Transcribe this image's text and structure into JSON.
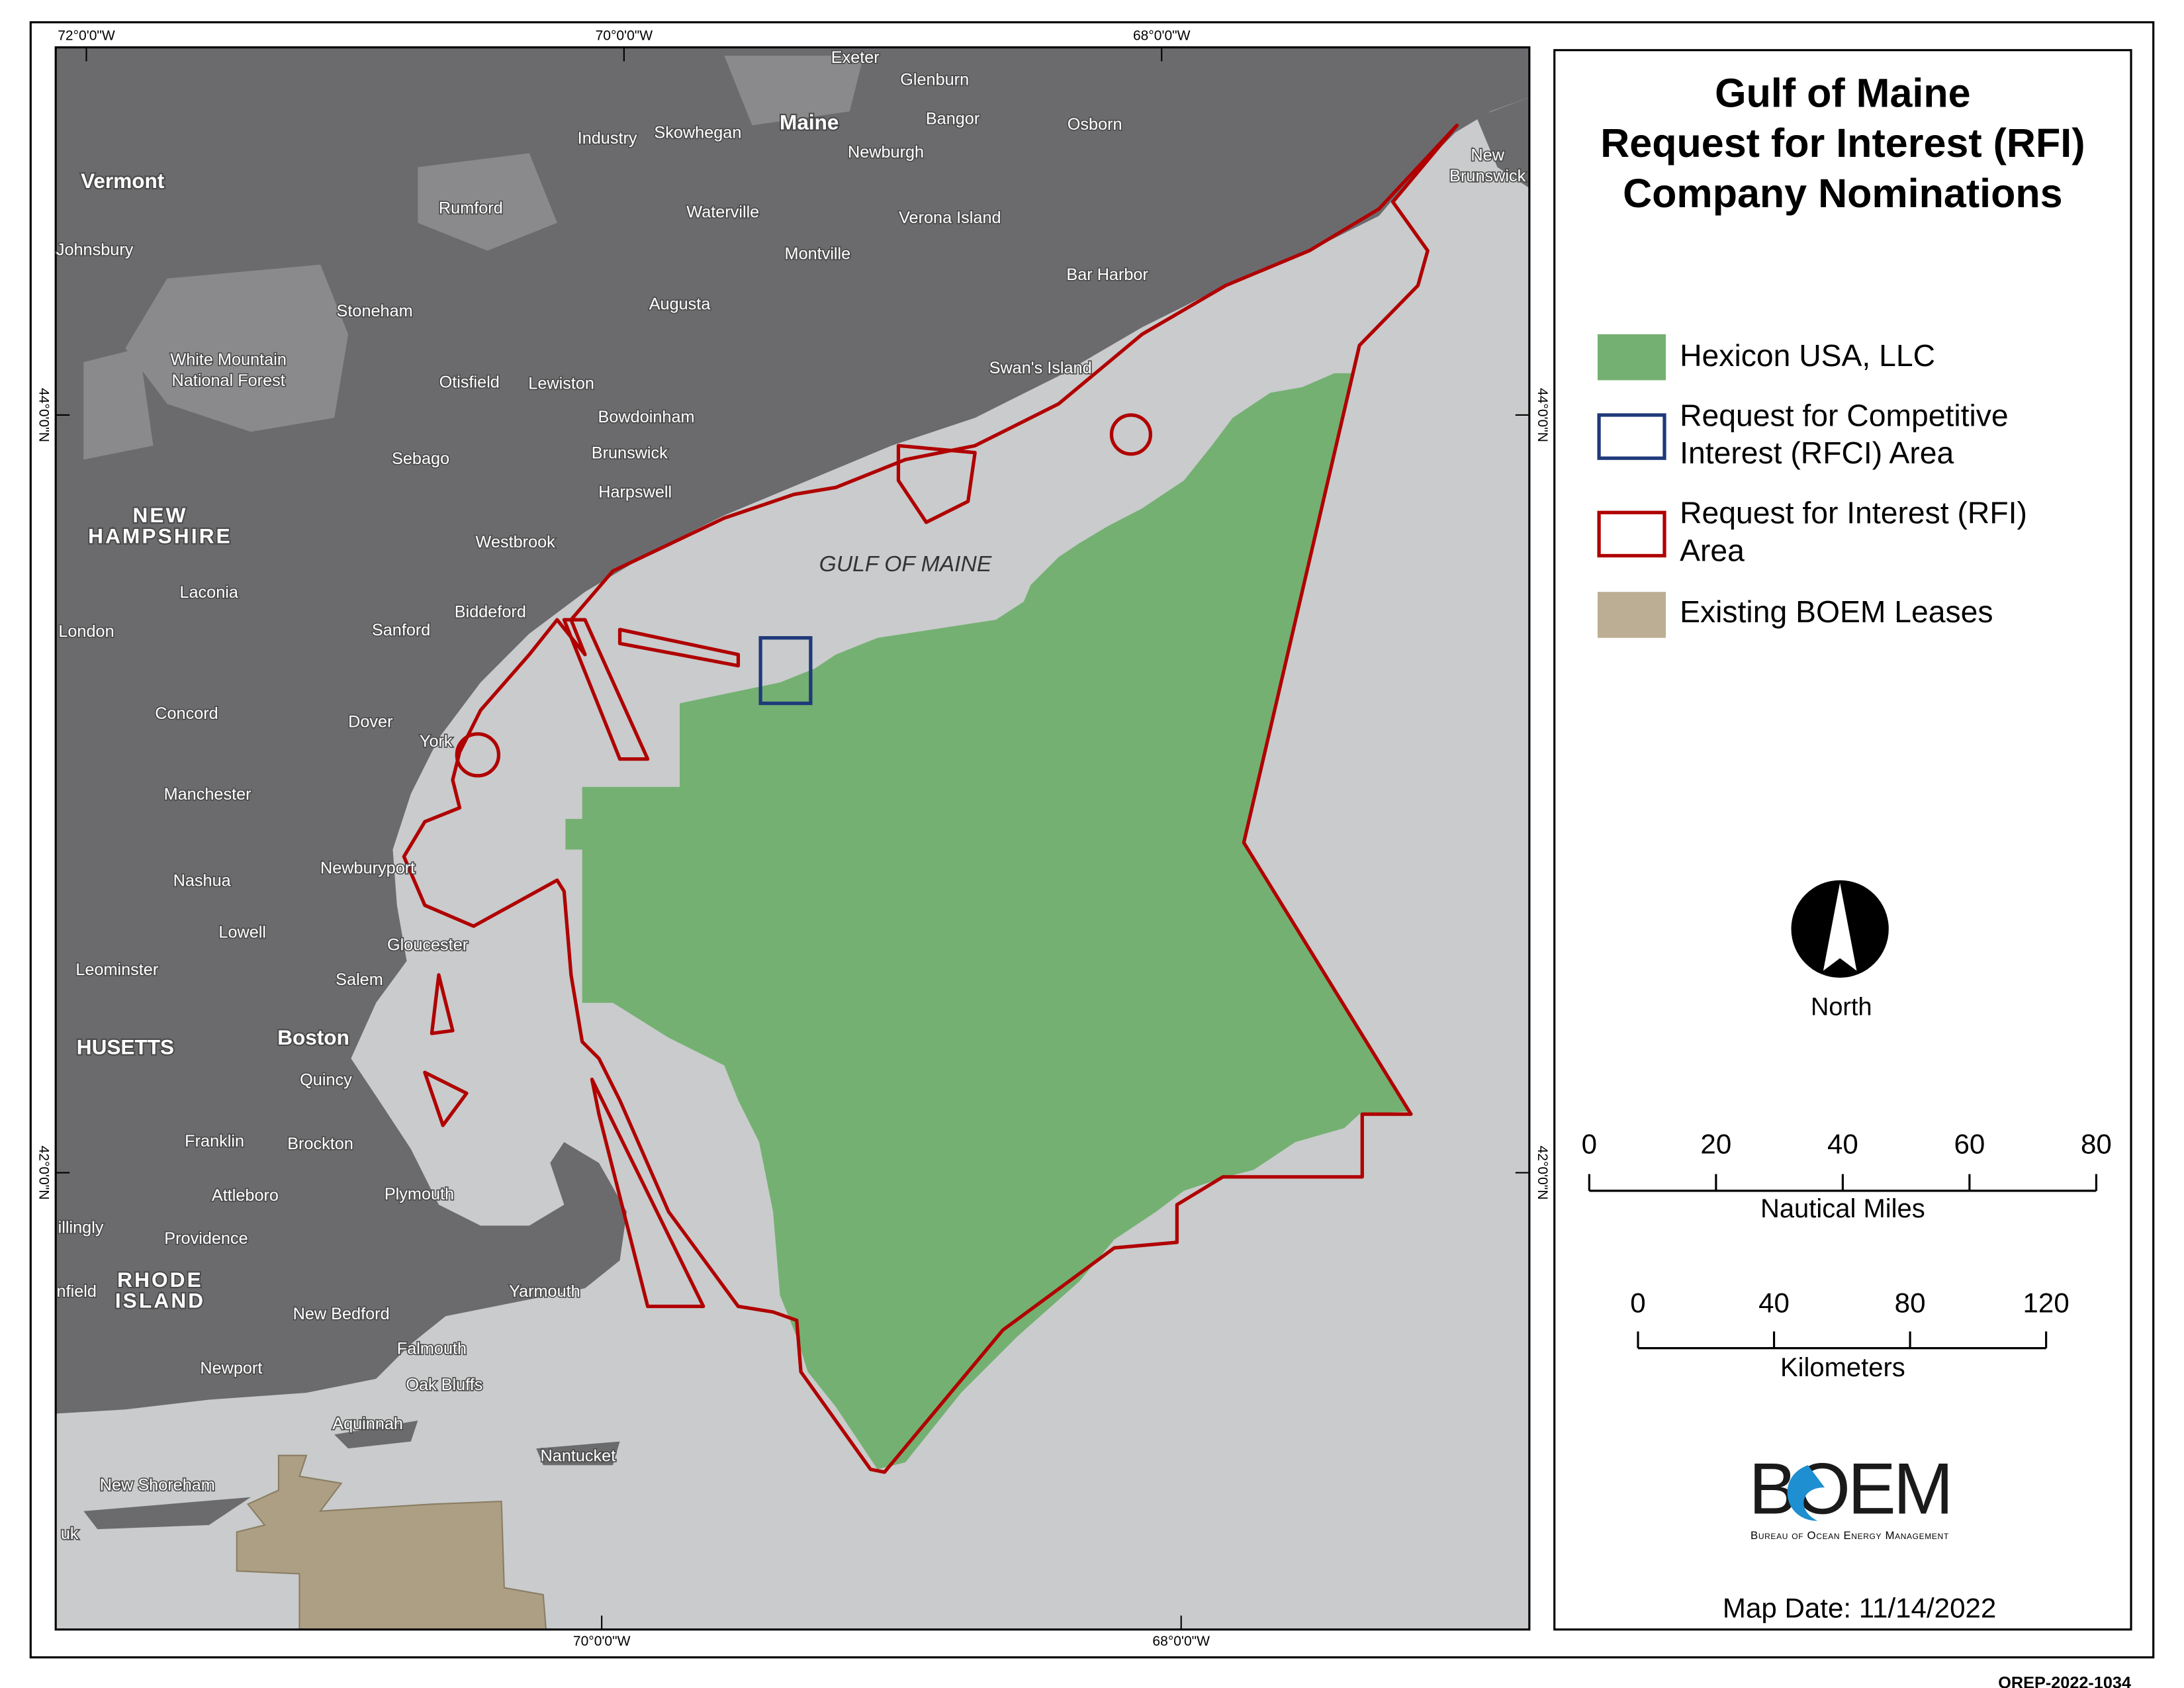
{
  "title": [
    "Gulf of Maine",
    "Request for Interest (RFI)",
    "Company Nominations"
  ],
  "legend": [
    {
      "lines": [
        "Hexicon USA, LLC"
      ]
    },
    {
      "lines": [
        "Request for Competitive",
        "Interest (RFCI) Area"
      ]
    },
    {
      "lines": [
        "Request for Interest (RFI)",
        "Area"
      ]
    },
    {
      "lines": [
        "Existing BOEM Leases"
      ]
    }
  ],
  "north_label": "North",
  "scale_bars": [
    {
      "ticks": [
        0,
        20,
        40,
        60,
        80
      ],
      "label": "Nautical Miles"
    },
    {
      "ticks": [
        0,
        40,
        80,
        120
      ],
      "label": "Kilometers"
    }
  ],
  "logo": {
    "name": "BOEM",
    "subtitle": "Bureau of Ocean Energy Management"
  },
  "map_date": "Map Date: 11/14/2022",
  "doc_id": "OREP-2022-1034",
  "coordinates": {
    "top": [
      "72°0'0\"W",
      "70°0'0\"W",
      "68°0'0\"W"
    ],
    "bottom": [
      "70°0'0\"W",
      "68°0'0\"W"
    ],
    "left": [
      "44°0'0\"N",
      "42°0'0\"N"
    ],
    "right": [
      "44°0'0\"N",
      "42°0'0\"N"
    ]
  },
  "water_label": "GULF OF MAINE",
  "place_labels": [
    [
      "Exeter"
    ],
    [
      "Glenburn"
    ],
    [
      "Maine"
    ],
    [
      "Industry"
    ],
    [
      "Skowhegan"
    ],
    [
      "Bangor"
    ],
    [
      "Osborn"
    ],
    [
      "Newburgh"
    ],
    [
      "Vermont"
    ],
    [
      "Rumford"
    ],
    [
      "Waterville"
    ],
    [
      "Verona Island"
    ],
    [
      "Johnsbury"
    ],
    [
      "Montville"
    ],
    [
      "Bar Harbor"
    ],
    [
      "Stoneham"
    ],
    [
      "Augusta"
    ],
    [
      "White Mountain",
      "National Forest"
    ],
    [
      "Swan's Island"
    ],
    [
      "Otisfield"
    ],
    [
      "Lewiston"
    ],
    [
      "Bowdoinham"
    ],
    [
      "Sebago"
    ],
    [
      "Brunswick"
    ],
    [
      "Harpswell"
    ],
    [
      "NEW",
      "HAMPSHIRE"
    ],
    [
      "Westbrook"
    ],
    [
      "Laconia"
    ],
    [
      "Biddeford"
    ],
    [
      "London"
    ],
    [
      "Sanford"
    ],
    [
      "Concord"
    ],
    [
      "Dover"
    ],
    [
      "York"
    ],
    [
      "Manchester"
    ],
    [
      "Newburyport"
    ],
    [
      "Nashua"
    ],
    [
      "Lowell"
    ],
    [
      "Gloucester"
    ],
    [
      "Leominster"
    ],
    [
      "Salem"
    ],
    [
      "HUSETTS"
    ],
    [
      "Boston"
    ],
    [
      "Quincy"
    ],
    [
      "Franklin"
    ],
    [
      "Brockton"
    ],
    [
      "Plymouth"
    ],
    [
      "Attleboro"
    ],
    [
      "illingly"
    ],
    [
      "Providence"
    ],
    [
      "RHODE",
      "ISLAND"
    ],
    [
      "nfield"
    ],
    [
      "New Bedford"
    ],
    [
      "Yarmouth"
    ],
    [
      "Falmouth"
    ],
    [
      "Newport"
    ],
    [
      "Oak Bluffs"
    ],
    [
      "Aquinnah"
    ],
    [
      "Nantucket"
    ],
    [
      "New Shoreham"
    ],
    [
      "uk"
    ],
    [
      "New",
      "Brunswick"
    ]
  ]
}
